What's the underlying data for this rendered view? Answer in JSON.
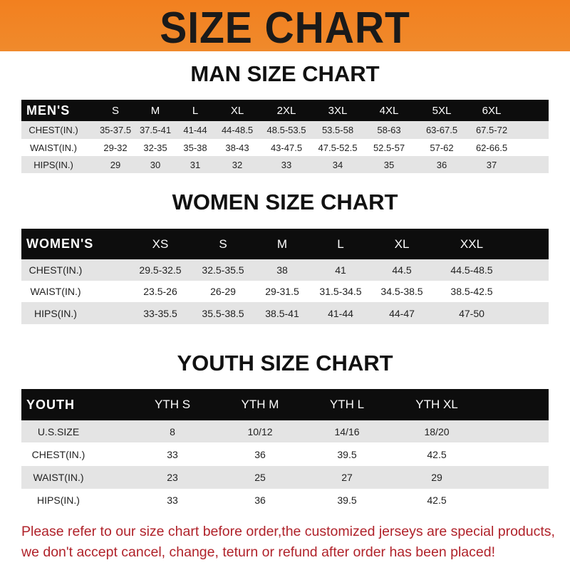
{
  "banner": {
    "title": "SIZE CHART"
  },
  "men": {
    "title": "MAN SIZE CHART",
    "header": "MEN'S",
    "sizes": [
      "S",
      "M",
      "L",
      "XL",
      "2XL",
      "3XL",
      "4XL",
      "5XL",
      "6XL"
    ],
    "rows": [
      {
        "label": "CHEST(IN.)",
        "values": [
          "35-37.5",
          "37.5-41",
          "41-44",
          "44-48.5",
          "48.5-53.5",
          "53.5-58",
          "58-63",
          "63-67.5",
          "67.5-72"
        ]
      },
      {
        "label": "WAIST(IN.)",
        "values": [
          "29-32",
          "32-35",
          "35-38",
          "38-43",
          "43-47.5",
          "47.5-52.5",
          "52.5-57",
          "57-62",
          "62-66.5"
        ]
      },
      {
        "label": "HIPS(IN.)",
        "values": [
          "29",
          "30",
          "31",
          "32",
          "33",
          "34",
          "35",
          "36",
          "37"
        ]
      }
    ]
  },
  "women": {
    "title": "WOMEN SIZE CHART",
    "header": "WOMEN'S",
    "sizes": [
      "XS",
      "S",
      "M",
      "L",
      "XL",
      "XXL"
    ],
    "rows": [
      {
        "label": "CHEST(IN.)",
        "values": [
          "29.5-32.5",
          "32.5-35.5",
          "38",
          "41",
          "44.5",
          "44.5-48.5"
        ]
      },
      {
        "label": "WAIST(IN.)",
        "values": [
          "23.5-26",
          "26-29",
          "29-31.5",
          "31.5-34.5",
          "34.5-38.5",
          "38.5-42.5"
        ]
      },
      {
        "label": "HIPS(IN.)",
        "values": [
          "33-35.5",
          "35.5-38.5",
          "38.5-41",
          "41-44",
          "44-47",
          "47-50"
        ]
      }
    ]
  },
  "youth": {
    "title": "YOUTH SIZE CHART",
    "header": "YOUTH",
    "sizes": [
      "YTH S",
      "YTH M",
      "YTH L",
      "YTH XL"
    ],
    "rows": [
      {
        "label": "U.S.SIZE",
        "values": [
          "8",
          "10/12",
          "14/16",
          "18/20"
        ]
      },
      {
        "label": "CHEST(IN.)",
        "values": [
          "33",
          "36",
          "39.5",
          "42.5"
        ]
      },
      {
        "label": "WAIST(IN.)",
        "values": [
          "23",
          "25",
          "27",
          "29"
        ]
      },
      {
        "label": "HIPS(IN.)",
        "values": [
          "33",
          "36",
          "39.5",
          "42.5"
        ]
      }
    ]
  },
  "footer": {
    "line1": "Please refer to our size chart before order,the customized jerseys are special products,",
    "line2": "we don't accept cancel, change, teturn or refund after order has been placed!"
  },
  "colors": {
    "banner": "#f2801f",
    "header_row": "#0d0d0d",
    "stripe": "#e4e4e4",
    "notice": "#b0222a"
  }
}
